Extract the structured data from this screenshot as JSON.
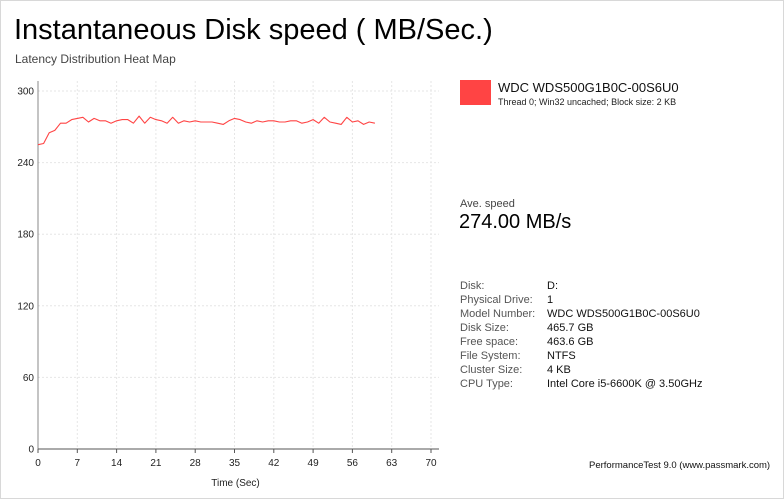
{
  "header": {
    "title": "Instantaneous Disk speed ( MB/Sec.)",
    "subtitle": "Latency Distribution Heat Map"
  },
  "legend": {
    "name": "WDC WDS500G1B0C-00S6U0",
    "description": "Thread 0; Win32 uncached; Block size: 2 KB",
    "color": "#ff4444"
  },
  "average": {
    "label": "Ave. speed",
    "value": "274.00 MB/s"
  },
  "info": [
    {
      "label": "Disk:",
      "value": "D:"
    },
    {
      "label": "Physical Drive:",
      "value": "1"
    },
    {
      "label": "Model Number:",
      "value": "WDC WDS500G1B0C-00S6U0"
    },
    {
      "label": "Disk Size:",
      "value": "465.7 GB"
    },
    {
      "label": "Free space:",
      "value": "463.6 GB"
    },
    {
      "label": "File System:",
      "value": "NTFS"
    },
    {
      "label": "Cluster Size:",
      "value": "4 KB"
    },
    {
      "label": "CPU Type:",
      "value": "Intel Core i5-6600K @ 3.50GHz"
    }
  ],
  "footer": "PerformanceTest 9.0 (www.passmark.com)",
  "chart_data": {
    "type": "line",
    "xlabel": "Time (Sec)",
    "ylabel": "",
    "xlim": [
      0,
      70
    ],
    "ylim": [
      0,
      300
    ],
    "xticks": [
      "0",
      "7",
      "14",
      "21",
      "28",
      "35",
      "42",
      "49",
      "56",
      "63",
      "70"
    ],
    "yticks": [
      "0",
      "60",
      "120",
      "180",
      "240",
      "300"
    ],
    "grid": true,
    "series": [
      {
        "color": "#ff4444",
        "x": [
          0,
          1,
          2,
          3,
          4,
          5,
          6,
          7,
          8,
          9,
          10,
          11,
          12,
          13,
          14,
          15,
          16,
          17,
          18,
          19,
          20,
          21,
          22,
          23,
          24,
          25,
          26,
          27,
          28,
          29,
          30,
          31,
          32,
          33,
          34,
          35,
          36,
          37,
          38,
          39,
          40,
          41,
          42,
          43,
          44,
          45,
          46,
          47,
          48,
          49,
          50,
          51,
          52,
          53,
          54,
          55,
          56,
          57,
          58,
          59,
          60
        ],
        "y": [
          255,
          256,
          265,
          267,
          273,
          273,
          276,
          277,
          278,
          274,
          277,
          275,
          275,
          273,
          275,
          276,
          276,
          273,
          279,
          273,
          278,
          276,
          275,
          273,
          278,
          273,
          275,
          274,
          275,
          274,
          274,
          274,
          273,
          272,
          275,
          277,
          276,
          274,
          273,
          275,
          274,
          275,
          275,
          274,
          274,
          275,
          275,
          273,
          274,
          276,
          273,
          278,
          274,
          273,
          272,
          278,
          274,
          275,
          272,
          274,
          273
        ]
      }
    ]
  }
}
